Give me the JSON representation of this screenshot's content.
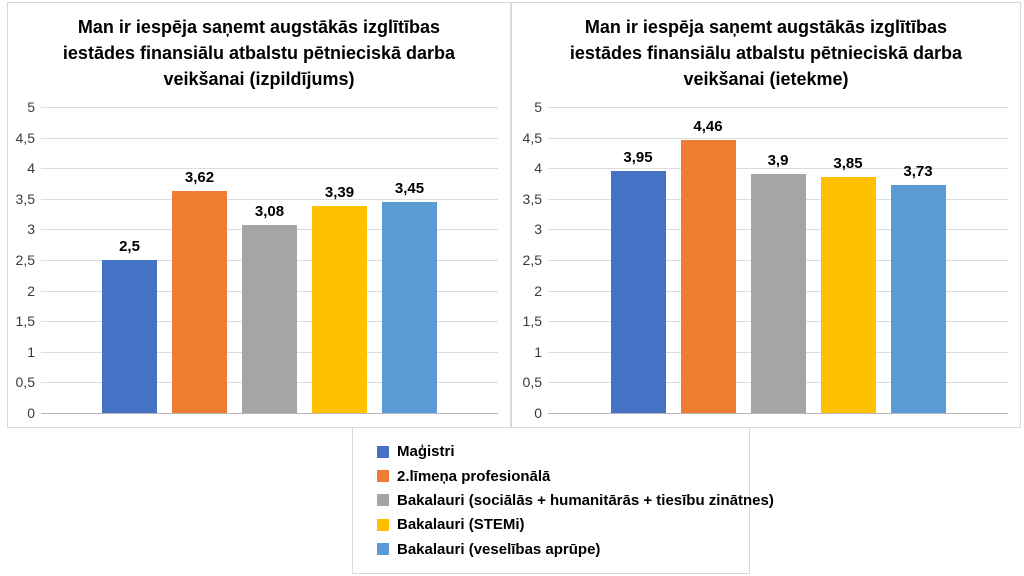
{
  "page": {
    "background": "#ffffff"
  },
  "palette": {
    "series_blue": "#4472c4",
    "series_orange": "#ed7d31",
    "series_gray": "#a5a5a5",
    "series_yellow": "#ffc000",
    "series_light_blue": "#5b9bd5",
    "gridline": "#dcdcdc",
    "axis_line": "#b7b7b7",
    "tick_text": "#3b3b3b",
    "title_text": "#000000"
  },
  "chart_data": [
    {
      "type": "bar",
      "title": "Man ir iespēja saņemt augstākās izglītības iestādes finansiālu atbalstu pētnieciskā darba veikšanai (izpildījums)",
      "categories": [
        "Maģistri",
        "2.līmeņa profesionālā",
        "Bakalauri (sociālās + humanitārās + tiesību zinātnes)",
        "Bakalauri (STEMi)",
        "Bakalauri (veselības aprūpe)"
      ],
      "values": [
        2.5,
        3.62,
        3.08,
        3.39,
        3.45
      ],
      "value_labels": [
        "2,5",
        "3,62",
        "3,08",
        "3,39",
        "3,45"
      ],
      "bar_colors": [
        "#4472c4",
        "#ed7d31",
        "#a5a5a5",
        "#ffc000",
        "#5b9bd5"
      ],
      "xlabel": "",
      "ylabel": "",
      "ylim": [
        0,
        5
      ],
      "ytick_step": 0.5,
      "ytick_labels": [
        "0",
        "0,5",
        "1",
        "1,5",
        "2",
        "2,5",
        "3",
        "3,5",
        "4",
        "4,5",
        "5"
      ],
      "grid": true,
      "legend_position": "bottom-center-shared"
    },
    {
      "type": "bar",
      "title": "Man ir iespēja saņemt augstākās izglītības iestādes finansiālu atbalstu pētnieciskā darba veikšanai (ietekme)",
      "categories": [
        "Maģistri",
        "2.līmeņa profesionālā",
        "Bakalauri (sociālās + humanitārās + tiesību zinātnes)",
        "Bakalauri (STEMi)",
        "Bakalauri (veselības aprūpe)"
      ],
      "values": [
        3.95,
        4.46,
        3.9,
        3.85,
        3.73
      ],
      "value_labels": [
        "3,95",
        "4,46",
        "3,9",
        "3,85",
        "3,73"
      ],
      "bar_colors": [
        "#4472c4",
        "#ed7d31",
        "#a5a5a5",
        "#ffc000",
        "#5b9bd5"
      ],
      "xlabel": "",
      "ylabel": "",
      "ylim": [
        0,
        5
      ],
      "ytick_step": 0.5,
      "ytick_labels": [
        "0",
        "0,5",
        "1",
        "1,5",
        "2",
        "2,5",
        "3",
        "3,5",
        "4",
        "4,5",
        "5"
      ],
      "grid": true,
      "legend_position": "bottom-center-shared"
    }
  ],
  "legend": {
    "items": [
      {
        "label": "Maģistri",
        "color": "#4472c4"
      },
      {
        "label": "2.līmeņa profesionālā",
        "color": "#ed7d31"
      },
      {
        "label": "Bakalauri (sociālās + humanitārās + tiesību zinātnes)",
        "color": "#a5a5a5"
      },
      {
        "label": "Bakalauri (STEMi)",
        "color": "#ffc000"
      },
      {
        "label": "Bakalauri (veselības aprūpe)",
        "color": "#5b9bd5"
      }
    ]
  }
}
